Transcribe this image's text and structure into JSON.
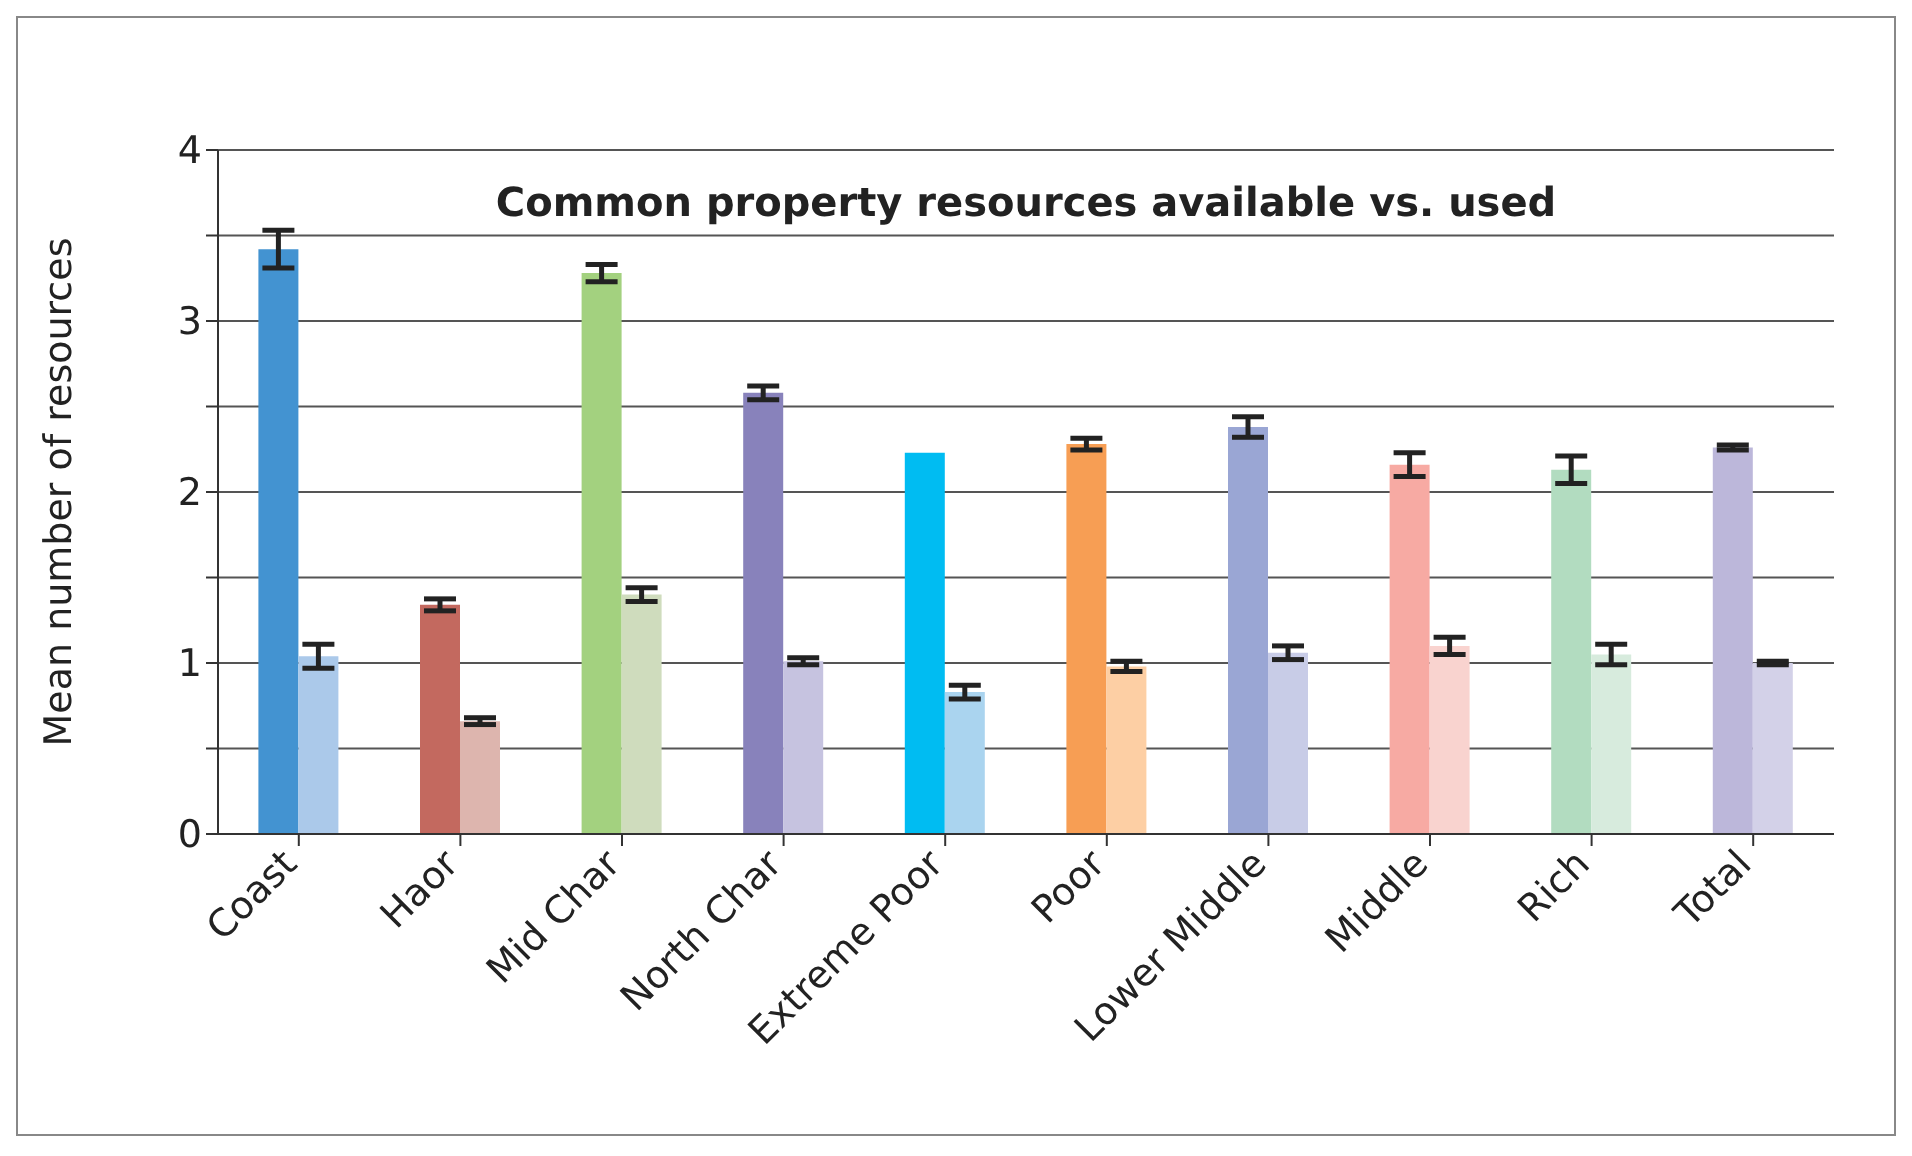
{
  "chart_data": {
    "type": "bar",
    "title": "Common property resources available vs. used",
    "ylabel": "Mean number of resources",
    "categories": [
      "Coast",
      "Haor",
      "Mid Char",
      "North Char",
      "Extreme Poor",
      "Poor",
      "Lower Middle",
      "Middle",
      "Rich",
      "Total"
    ],
    "series": [
      {
        "colors": [
          "#4393d1",
          "#c3695f",
          "#a3d17f",
          "#8882bb",
          "#00bcf2",
          "#f79e54",
          "#9aa6d4",
          "#f7aaa3",
          "#b2dcc0",
          "#bcb7da"
        ],
        "values": [
          3.42,
          1.34,
          3.28,
          2.58,
          2.23,
          2.28,
          2.38,
          2.16,
          2.13,
          2.26
        ],
        "errors": [
          0.11,
          0.035,
          0.05,
          0.04,
          null,
          0.035,
          0.06,
          0.07,
          0.08,
          0.015
        ]
      },
      {
        "colors": [
          "#abc9ea",
          "#ddb5ae",
          "#cfdcbd",
          "#c6c3e0",
          "#aad4ef",
          "#fdcfa4",
          "#c8cce7",
          "#f9d3cf",
          "#d7ebdd",
          "#d3d1e8"
        ],
        "values": [
          1.04,
          0.66,
          1.4,
          1.01,
          0.83,
          0.98,
          1.06,
          1.1,
          1.05,
          1.0
        ],
        "errors": [
          0.07,
          0.02,
          0.04,
          0.02,
          0.04,
          0.03,
          0.04,
          0.05,
          0.06,
          0.01
        ]
      }
    ],
    "ylim": [
      0,
      4
    ],
    "yticks": [
      0,
      {
        "value": 0.5,
        "label": null
      },
      1,
      {
        "value": 1.5,
        "label": null
      },
      2,
      {
        "value": 2.5,
        "label": null
      },
      3,
      {
        "value": 3.5,
        "label": null
      },
      4
    ],
    "grid": "y",
    "legend": false
  }
}
